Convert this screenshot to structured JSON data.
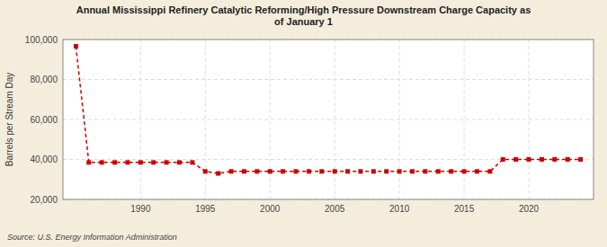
{
  "chart_data": {
    "type": "line",
    "title": "Annual Mississippi Refinery Catalytic Reforming/High Pressure Downstream Charge Capacity as\nof January 1",
    "y_label": "Barrels per Stream Day",
    "annotations": [
      "Source: U.S. Energy Information Administration"
    ],
    "x": [
      1985,
      1986,
      1987,
      1988,
      1989,
      1990,
      1991,
      1992,
      1993,
      1994,
      1995,
      1996,
      1997,
      1998,
      1999,
      2000,
      2001,
      2002,
      2003,
      2004,
      2005,
      2006,
      2007,
      2008,
      2009,
      2010,
      2011,
      2012,
      2013,
      2014,
      2015,
      2016,
      2017,
      2018,
      2019,
      2020,
      2021,
      2022,
      2023,
      2024
    ],
    "values": [
      96600,
      38500,
      38500,
      38500,
      38500,
      38500,
      38500,
      38500,
      38500,
      38500,
      34000,
      33000,
      34000,
      34000,
      34000,
      34000,
      34000,
      34000,
      34000,
      34000,
      34000,
      34000,
      34000,
      34000,
      34000,
      34000,
      34000,
      34000,
      34000,
      34000,
      34000,
      34000,
      34000,
      40000,
      40000,
      40000,
      40000,
      40000,
      40000,
      40000
    ],
    "color": "#cc0000",
    "marker": "square",
    "line_style": "dashed",
    "grid": true,
    "xlim": [
      1984,
      2025
    ],
    "xticks": [
      1990,
      1995,
      2000,
      2005,
      2010,
      2015,
      2020
    ],
    "ylim": [
      20000,
      100000
    ],
    "yticks": [
      {
        "value": 20000,
        "label": "20,000"
      },
      {
        "value": 40000,
        "label": "40,000"
      },
      {
        "value": 60000,
        "label": "60,000"
      },
      {
        "value": 80000,
        "label": "80,000"
      },
      {
        "value": 100000,
        "label": "100,000"
      }
    ]
  }
}
